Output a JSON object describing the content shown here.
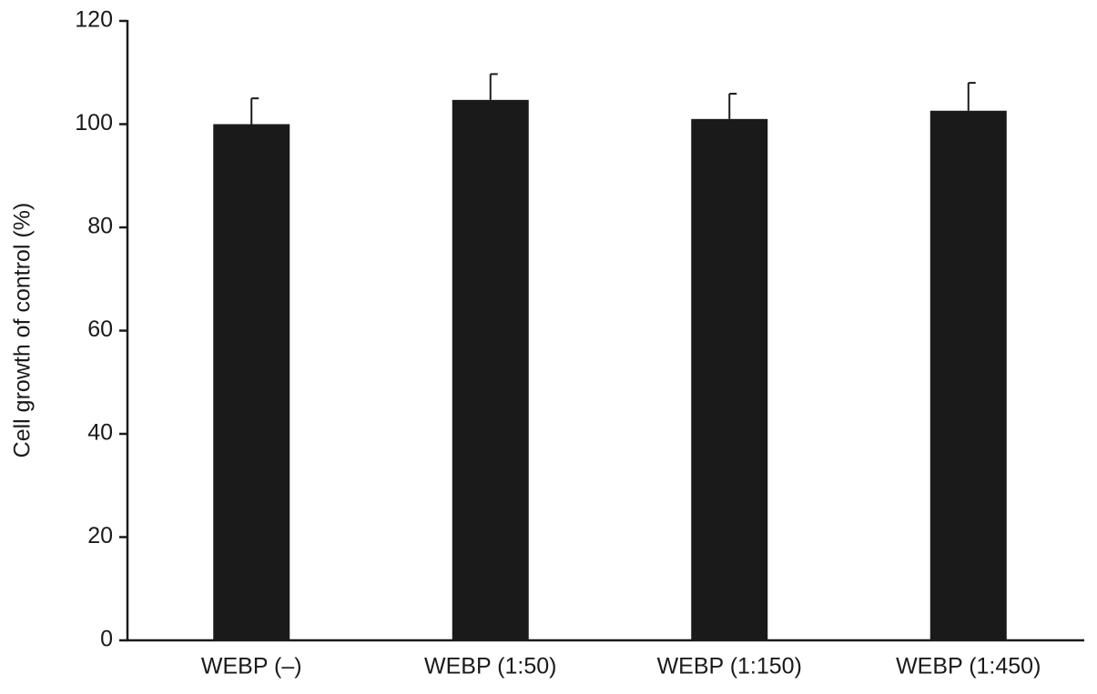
{
  "chart_data": {
    "type": "bar",
    "y_label": "Cell growth of control (%)",
    "categories": [
      "WEBP (–)",
      "WEBP (1:50)",
      "WEBP (1:150)",
      "WEBP (1:450)"
    ],
    "values": [
      100,
      104.7,
      101,
      102.6
    ],
    "errors": [
      5,
      5,
      4.9,
      5.4
    ],
    "color": "#1a1a1a",
    "ylim": [
      0,
      120
    ],
    "yticks": [
      0,
      20,
      40,
      60,
      80,
      100,
      120
    ]
  }
}
